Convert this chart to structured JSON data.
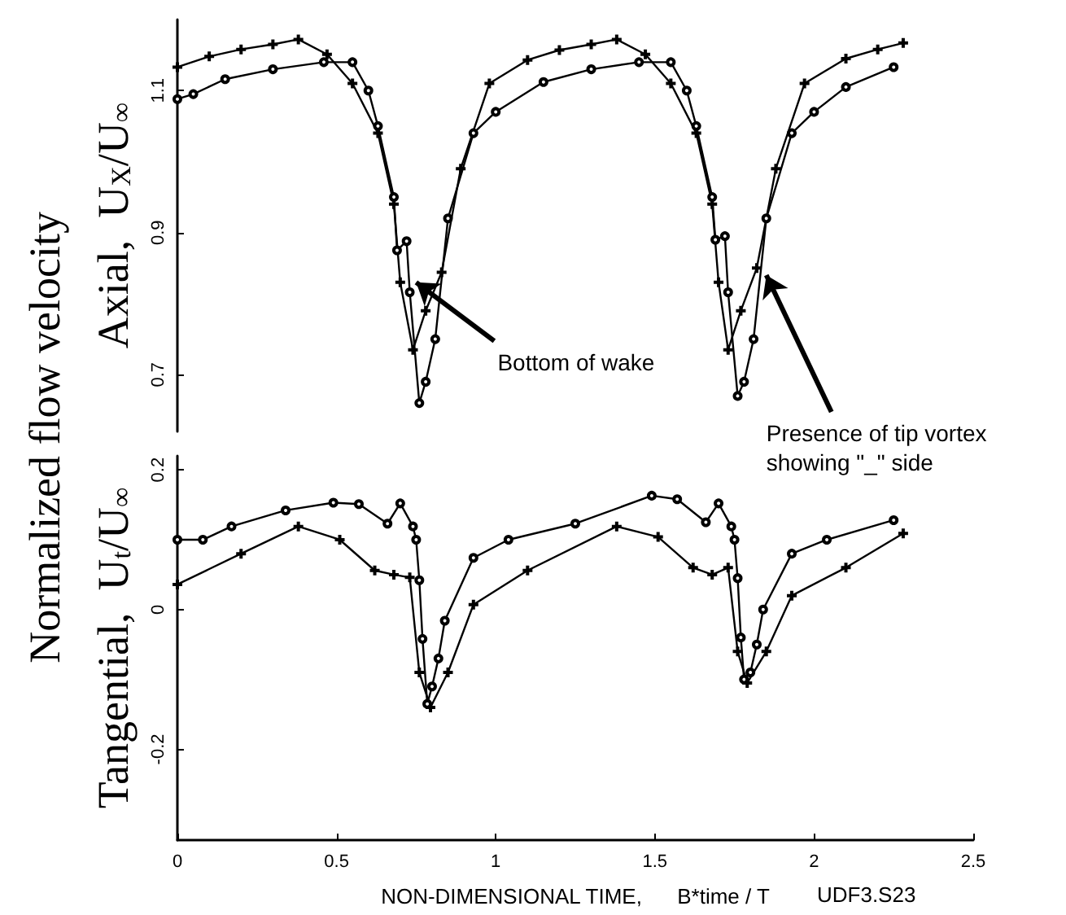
{
  "chart_data": [
    {
      "type": "line",
      "ylabel": "Axial,  U$_{X}$/U$_{∞}$",
      "xlim": [
        0,
        2.5
      ],
      "ylim": [
        0.62,
        1.2
      ],
      "yticks": [
        0.7,
        0.9,
        1.1
      ],
      "tick_labels": "y",
      "series": [
        {
          "color": "#000000",
          "marker": "cross",
          "x": [
            0,
            0.1,
            0.2,
            0.3,
            0.38,
            0.47,
            0.55,
            0.63,
            0.68,
            0.7,
            0.74,
            0.78,
            0.83,
            0.89,
            0.98,
            1.1,
            1.2,
            1.3,
            1.38,
            1.47,
            1.55,
            1.63,
            1.68,
            1.7,
            1.73,
            1.77,
            1.82,
            1.88,
            1.97,
            2.1,
            2.2,
            2.28
          ],
          "values": [
            1.133,
            1.148,
            1.158,
            1.165,
            1.172,
            1.151,
            1.11,
            1.04,
            0.94,
            0.83,
            0.735,
            0.79,
            0.844,
            0.99,
            1.11,
            1.143,
            1.157,
            1.165,
            1.172,
            1.151,
            1.11,
            1.04,
            0.94,
            0.83,
            0.735,
            0.79,
            0.85,
            0.99,
            1.11,
            1.145,
            1.158,
            1.167
          ]
        },
        {
          "color": "#000000",
          "marker": "circle",
          "x": [
            0,
            0.05,
            0.15,
            0.3,
            0.46,
            0.55,
            0.6,
            0.63,
            0.68,
            0.69,
            0.72,
            0.73,
            0.76,
            0.78,
            0.81,
            0.85,
            0.93,
            1.0,
            1.15,
            1.3,
            1.45,
            1.55,
            1.6,
            1.63,
            1.68,
            1.69,
            1.72,
            1.73,
            1.76,
            1.78,
            1.81,
            1.85,
            1.93,
            2.0,
            2.1,
            2.25
          ],
          "values": [
            1.088,
            1.095,
            1.116,
            1.13,
            1.14,
            1.14,
            1.1,
            1.05,
            0.95,
            0.875,
            0.888,
            0.816,
            0.66,
            0.69,
            0.75,
            0.92,
            1.04,
            1.07,
            1.112,
            1.13,
            1.14,
            1.14,
            1.1,
            1.05,
            0.95,
            0.89,
            0.895,
            0.816,
            0.67,
            0.69,
            0.75,
            0.92,
            1.04,
            1.07,
            1.105,
            1.133
          ]
        }
      ],
      "annotations": [
        "Normalized flow velocity",
        {
          "text": "Bottom of wake",
          "x": 0.75,
          "y": 0.83
        },
        {
          "text": "Presence of tip vortex\nshowing \"_\" side",
          "x": 1.85,
          "y": 0.84
        }
      ]
    },
    {
      "type": "line",
      "xlabel": "NON-DIMENSIONAL TIME,      B*time / T",
      "ylabel": "Tangential,  U$_{t}$/U$_{∞}$",
      "xlim": [
        0,
        2.5
      ],
      "xticks": [
        0,
        0.5,
        1,
        1.5,
        2,
        2.5
      ],
      "ylim": [
        -0.33,
        0.22
      ],
      "yticks": [
        -0.2,
        0,
        0.2
      ],
      "series": [
        {
          "color": "#000000",
          "marker": "circle",
          "x": [
            0,
            0.08,
            0.17,
            0.34,
            0.49,
            0.57,
            0.66,
            0.7,
            0.74,
            0.75,
            0.76,
            0.77,
            0.785,
            0.8,
            0.82,
            0.84,
            0.93,
            1.04,
            1.25,
            1.49,
            1.57,
            1.66,
            1.7,
            1.74,
            1.75,
            1.76,
            1.77,
            1.78,
            1.8,
            1.82,
            1.84,
            1.93,
            2.04,
            2.25
          ],
          "values": [
            0.1,
            0.1,
            0.119,
            0.142,
            0.153,
            0.151,
            0.123,
            0.152,
            0.119,
            0.1,
            0.042,
            -0.042,
            -0.135,
            -0.11,
            -0.07,
            -0.016,
            0.074,
            0.1,
            0.123,
            0.163,
            0.158,
            0.125,
            0.152,
            0.119,
            0.1,
            0.045,
            -0.04,
            -0.1,
            -0.09,
            -0.05,
            0.0,
            0.08,
            0.1,
            0.128
          ]
        },
        {
          "color": "#000000",
          "marker": "cross",
          "x": [
            0,
            0.2,
            0.38,
            0.51,
            0.62,
            0.68,
            0.73,
            0.76,
            0.795,
            0.85,
            0.93,
            1.1,
            1.38,
            1.51,
            1.62,
            1.68,
            1.73,
            1.76,
            1.79,
            1.85,
            1.93,
            2.1,
            2.28
          ],
          "values": [
            0.036,
            0.08,
            0.119,
            0.1,
            0.056,
            0.05,
            0.046,
            -0.09,
            -0.14,
            -0.09,
            0.007,
            0.056,
            0.119,
            0.104,
            0.06,
            0.05,
            0.06,
            -0.06,
            -0.105,
            -0.06,
            0.02,
            0.06,
            0.109
          ]
        }
      ],
      "annotations": [
        "UDF3.S23"
      ]
    }
  ]
}
